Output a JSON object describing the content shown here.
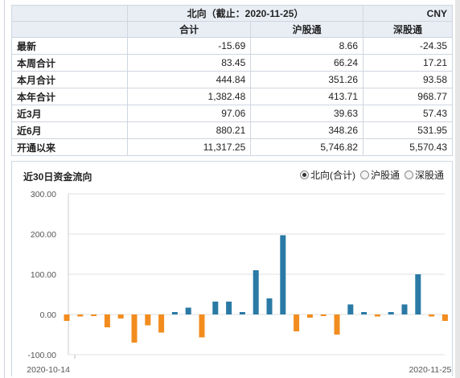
{
  "table": {
    "title": "北向（截止：2020-11-25）",
    "currency": "CNY",
    "columns": [
      "合计",
      "沪股通",
      "深股通"
    ],
    "rows": [
      {
        "label": "最新",
        "values": [
          "-15.69",
          "8.66",
          "-24.35"
        ]
      },
      {
        "label": "本周合计",
        "values": [
          "83.45",
          "66.24",
          "17.21"
        ]
      },
      {
        "label": "本月合计",
        "values": [
          "444.84",
          "351.26",
          "93.58"
        ]
      },
      {
        "label": "本年合计",
        "values": [
          "1,382.48",
          "413.71",
          "968.77"
        ]
      },
      {
        "label": "近3月",
        "values": [
          "97.06",
          "39.63",
          "57.43"
        ]
      },
      {
        "label": "近6月",
        "values": [
          "880.21",
          "348.26",
          "531.95"
        ]
      },
      {
        "label": "开通以来",
        "values": [
          "11,317.25",
          "5,746.82",
          "5,570.43"
        ]
      }
    ]
  },
  "chart_section": {
    "title": "近30日资金流向",
    "options": [
      {
        "label": "北向(合计)",
        "selected": true
      },
      {
        "label": "沪股通",
        "selected": false
      },
      {
        "label": "深股通",
        "selected": false
      }
    ]
  },
  "colors": {
    "positive": "#2a7aa5",
    "negative": "#f28c1e"
  },
  "chart_data": {
    "type": "bar",
    "title": "近30日资金流向",
    "ylim": [
      -100,
      300
    ],
    "yticks": [
      "-100.00",
      "0.00",
      "100.00",
      "200.00",
      "300.00"
    ],
    "x_labels": [
      "2020-10-14",
      "2020-11-25"
    ],
    "grid": true,
    "values": [
      -16,
      -5,
      -4,
      -32,
      -10,
      -70,
      -27,
      -45,
      6,
      17,
      -57,
      32,
      32,
      6,
      110,
      40,
      197,
      -42,
      -8,
      -4,
      -50,
      25,
      6,
      -5,
      6,
      25,
      100,
      -5,
      -16
    ]
  }
}
